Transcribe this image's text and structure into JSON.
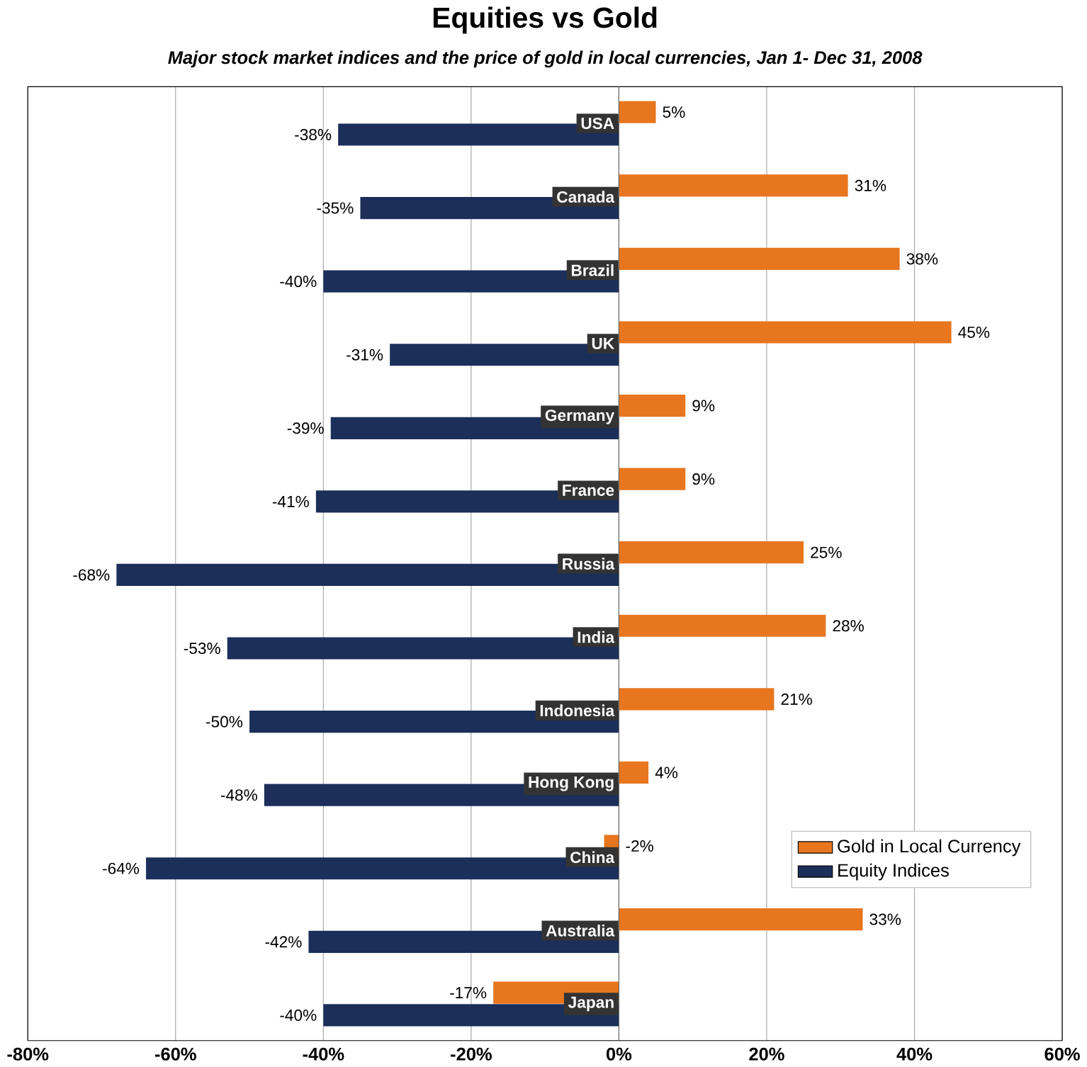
{
  "chart_data": {
    "type": "bar",
    "orientation": "horizontal",
    "title": "Equities vs Gold",
    "subtitle": "Major stock market indices and the price of gold in local currencies, Jan 1- Dec 31, 2008",
    "categories": [
      "USA",
      "Canada",
      "Brazil",
      "UK",
      "Germany",
      "France",
      "Russia",
      "India",
      "Indonesia",
      "Hong Kong",
      "China",
      "Australia",
      "Japan"
    ],
    "series": [
      {
        "name": "Gold in Local Currency",
        "color": "#e8761e",
        "values": [
          5,
          31,
          38,
          45,
          9,
          9,
          25,
          28,
          21,
          4,
          -2,
          33,
          -17
        ],
        "value_labels": [
          "5%",
          "31%",
          "38%",
          "45%",
          "9%",
          "9%",
          "25%",
          "28%",
          "21%",
          "4%",
          "-2%",
          "33%",
          "-17%"
        ]
      },
      {
        "name": "Equity Indices",
        "color": "#1b2f5a",
        "values": [
          -38,
          -35,
          -40,
          -31,
          -39,
          -41,
          -68,
          -53,
          -50,
          -48,
          -64,
          -42,
          -40
        ],
        "value_labels": [
          "-38%",
          "-35%",
          "-40%",
          "-31%",
          "-39%",
          "-41%",
          "-68%",
          "-53%",
          "-50%",
          "-48%",
          "-64%",
          "-42%",
          "-40%"
        ]
      }
    ],
    "xlim": [
      -80,
      60
    ],
    "xticks": [
      {
        "value": -80,
        "label": "-80%"
      },
      {
        "value": -60,
        "label": "-60%"
      },
      {
        "value": -40,
        "label": "-40%"
      },
      {
        "value": -20,
        "label": "-20%"
      },
      {
        "value": 0,
        "label": "0%"
      },
      {
        "value": 20,
        "label": "20%"
      },
      {
        "value": 40,
        "label": "40%"
      },
      {
        "value": 60,
        "label": "60%"
      }
    ],
    "grid": "x",
    "legend": "bottom right"
  }
}
